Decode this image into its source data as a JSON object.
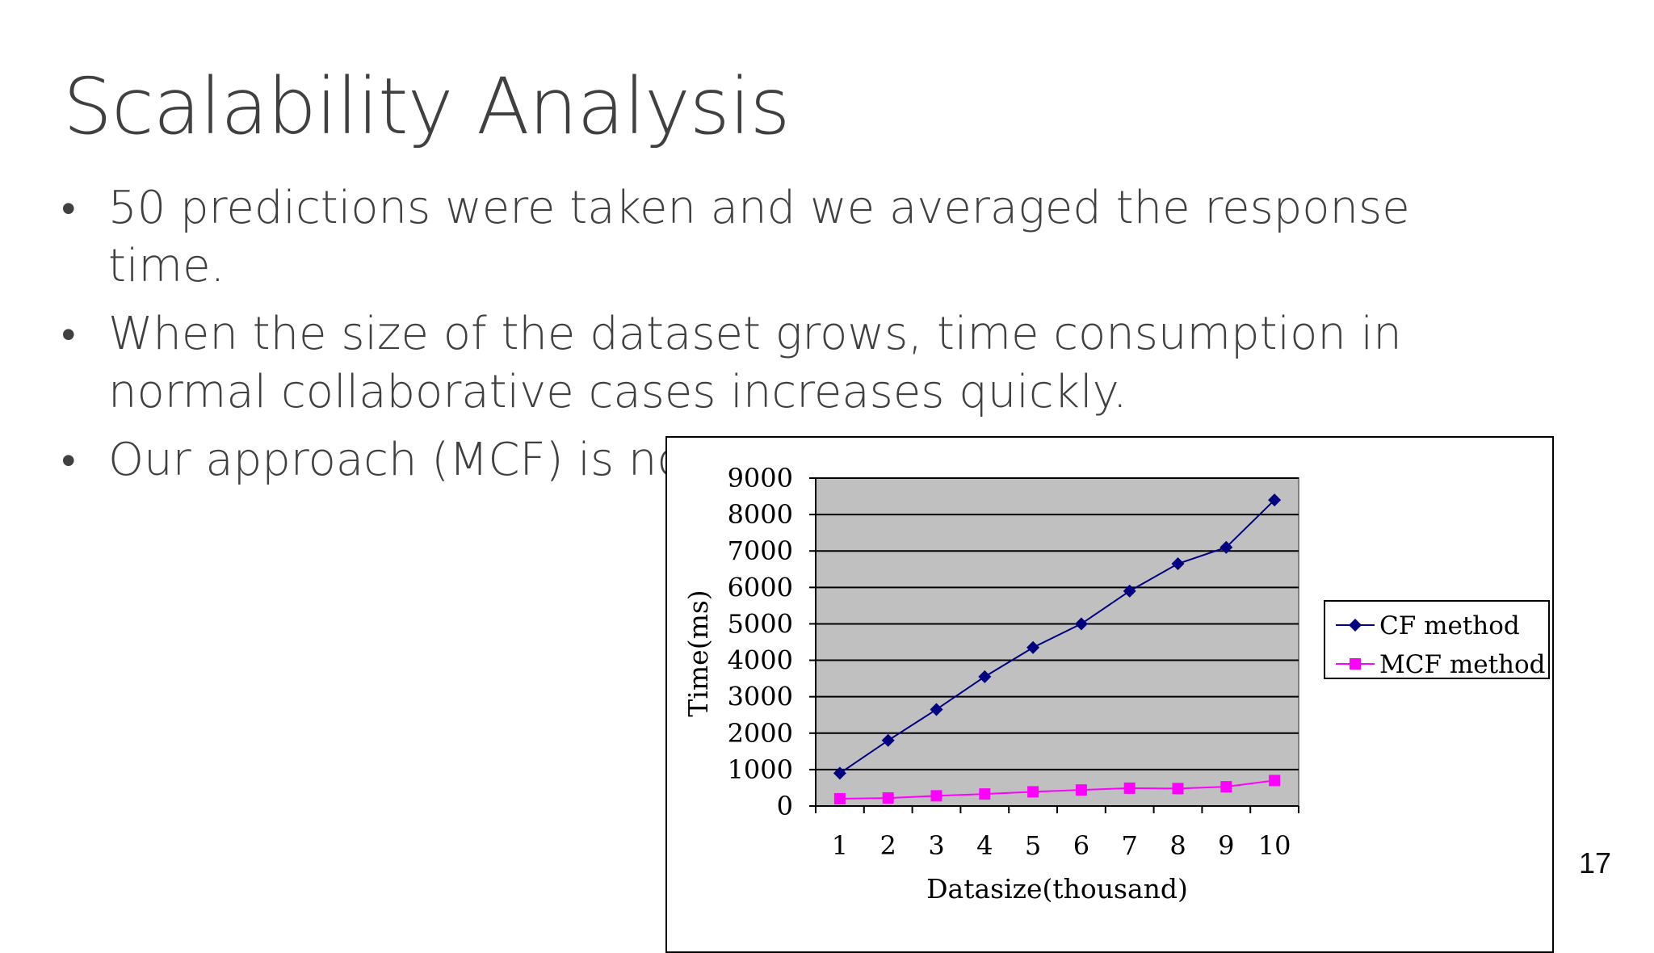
{
  "title": "Scalability Analysis",
  "bullets": [
    "50 predictions were taken and we averaged the response time.",
    "When the size of the dataset grows, time consumption in normal collaborative cases increases quickly.",
    "Our approach (MCF) is not much affected by data size."
  ],
  "bullet_glyph": "•",
  "page_number": "17",
  "chart_data": {
    "type": "line",
    "x": [
      1,
      2,
      3,
      4,
      5,
      6,
      7,
      8,
      9,
      10
    ],
    "xlabel": "Datasize(thousand)",
    "ylabel": "Time(ms)",
    "ylim": [
      0,
      9000
    ],
    "yticks": [
      0,
      1000,
      2000,
      3000,
      4000,
      5000,
      6000,
      7000,
      8000,
      9000
    ],
    "grid": true,
    "plot_background": "#c0c0c0",
    "legend_position": "right",
    "series": [
      {
        "name": "CF method",
        "color": "#000080",
        "marker": "diamond",
        "values": [
          900,
          1800,
          2650,
          3550,
          4350,
          5000,
          5900,
          6650,
          7100,
          8400
        ]
      },
      {
        "name": "MCF method",
        "color": "#ff00ff",
        "marker": "square",
        "values": [
          200,
          220,
          280,
          330,
          390,
          440,
          490,
          480,
          530,
          700
        ]
      }
    ]
  }
}
